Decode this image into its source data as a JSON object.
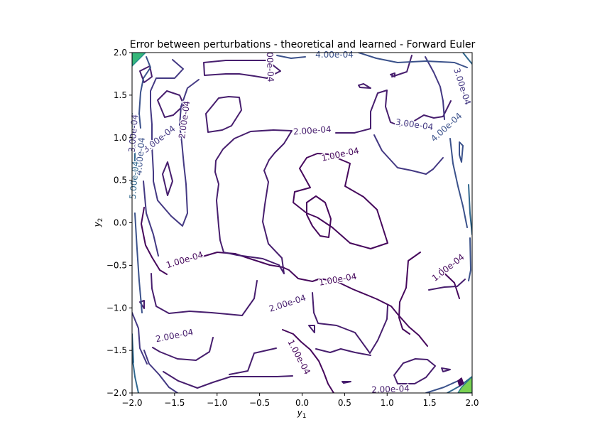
{
  "chart_data": {
    "type": "contour",
    "title": "Error between perturbations - theoretical and learned - Forward Euler",
    "xlabel": "y",
    "xlabel_sub": "1",
    "ylabel": "y",
    "ylabel_sub": "2",
    "xlim": [
      -2.0,
      2.0
    ],
    "ylim": [
      -2.0,
      2.0
    ],
    "x_ticks": [
      -2.0,
      -1.5,
      -1.0,
      -0.5,
      0.0,
      0.5,
      1.0,
      1.5,
      2.0
    ],
    "x_tick_labels": [
      "−2.0",
      "−1.5",
      "−1.0",
      "−0.5",
      "0.0",
      "0.5",
      "1.0",
      "1.5",
      "2.0"
    ],
    "y_ticks": [
      -2.0,
      -1.5,
      -1.0,
      -0.5,
      0.0,
      0.5,
      1.0,
      1.5,
      2.0
    ],
    "y_tick_labels": [
      "−2.0",
      "−1.5",
      "−1.0",
      "−0.5",
      "0.0",
      "0.5",
      "1.0",
      "1.5",
      "2.0"
    ],
    "grid": false,
    "levels": [
      {
        "value": "1.00e-04",
        "color": "#46085c"
      },
      {
        "value": "2.00e-04",
        "color": "#471e6e"
      },
      {
        "value": "3.00e-04",
        "color": "#443983"
      },
      {
        "value": "4.00e-04",
        "color": "#3b528b"
      },
      {
        "value": "5.00e-04",
        "color": "#31688e"
      }
    ],
    "contour_labels": [
      {
        "text": "4.00e-04",
        "x": 0.38,
        "y": 1.97,
        "angle": 0,
        "level": 3
      },
      {
        "text": "00e-04",
        "x": -0.38,
        "y": 1.83,
        "angle": 88,
        "level": 1
      },
      {
        "text": "3.00e-04",
        "x": 1.88,
        "y": 1.6,
        "angle": 72,
        "level": 2
      },
      {
        "text": "2.00e-04",
        "x": -1.38,
        "y": 1.21,
        "angle": -82,
        "level": 1
      },
      {
        "text": "3.00e-04",
        "x": -1.68,
        "y": 0.98,
        "angle": -38,
        "level": 2
      },
      {
        "text": "3.00e-04",
        "x": -1.98,
        "y": 1.05,
        "angle": -85,
        "level": 2
      },
      {
        "text": "4.00e-04",
        "x": -1.9,
        "y": 0.78,
        "angle": -85,
        "level": 3
      },
      {
        "text": "5.00e-04",
        "x": -1.97,
        "y": 0.5,
        "angle": -85,
        "level": 4
      },
      {
        "text": "2.00e-04",
        "x": 0.12,
        "y": 1.08,
        "angle": -4,
        "level": 1
      },
      {
        "text": "1.00e-04",
        "x": 0.45,
        "y": 0.8,
        "angle": -12,
        "level": 0
      },
      {
        "text": "3.00e-04",
        "x": 1.32,
        "y": 1.15,
        "angle": 8,
        "level": 2
      },
      {
        "text": "4.00e-04",
        "x": 1.7,
        "y": 1.12,
        "angle": -42,
        "level": 3
      },
      {
        "text": "1.00e-04",
        "x": -1.38,
        "y": -0.44,
        "angle": -17,
        "level": 0
      },
      {
        "text": "1.00e-04",
        "x": 0.42,
        "y": -0.67,
        "angle": -10,
        "level": 0
      },
      {
        "text": "1.00e-04",
        "x": 1.72,
        "y": -0.53,
        "angle": -38,
        "level": 0
      },
      {
        "text": "2.00e-04",
        "x": -0.17,
        "y": -0.95,
        "angle": -18,
        "level": 1
      },
      {
        "text": "2.00e-04",
        "x": -1.5,
        "y": -1.33,
        "angle": -11,
        "level": 1
      },
      {
        "text": "1.00e-04",
        "x": -0.04,
        "y": -1.58,
        "angle": 62,
        "level": 0
      },
      {
        "text": "2.00e-04",
        "x": 1.04,
        "y": -1.96,
        "angle": -2,
        "level": 1
      }
    ]
  }
}
